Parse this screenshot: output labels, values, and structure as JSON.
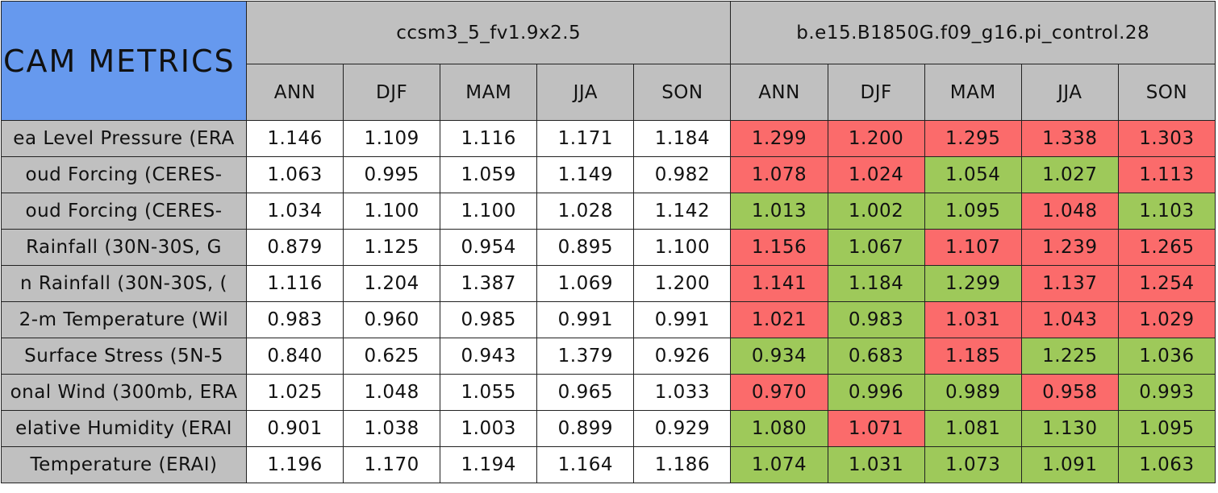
{
  "table": {
    "corner": "CAM METRICS",
    "groups": [
      "ccsm3_5_fv1.9x2.5",
      "b.e15.B1850G.f09_g16.pi_control.28"
    ],
    "seasons": [
      "ANN",
      "DJF",
      "MAM",
      "JJA",
      "SON",
      "ANN",
      "DJF",
      "MAM",
      "JJA",
      "SON"
    ],
    "rows": [
      {
        "label": "ea Level Pressure (ERA",
        "values": [
          "1.146",
          "1.109",
          "1.116",
          "1.171",
          "1.184",
          "1.299",
          "1.200",
          "1.295",
          "1.338",
          "1.303"
        ],
        "colors": [
          "#fb6b6b",
          "#fb6b6b",
          "#fb6b6b",
          "#fb6b6b",
          "#fb6b6b"
        ]
      },
      {
        "label": "oud Forcing (CERES-",
        "values": [
          "1.063",
          "0.995",
          "1.059",
          "1.149",
          "0.982",
          "1.078",
          "1.024",
          "1.054",
          "1.027",
          "1.113"
        ],
        "colors": [
          "#fb6b6b",
          "#fb6b6b",
          "#9ec95a",
          "#9ec95a",
          "#fb6b6b"
        ]
      },
      {
        "label": "oud Forcing (CERES-",
        "values": [
          "1.034",
          "1.100",
          "1.100",
          "1.028",
          "1.142",
          "1.013",
          "1.002",
          "1.095",
          "1.048",
          "1.103"
        ],
        "colors": [
          "#9ec95a",
          "#9ec95a",
          "#9ec95a",
          "#fb6b6b",
          "#9ec95a"
        ]
      },
      {
        "label": "Rainfall (30N-30S, G",
        "values": [
          "0.879",
          "1.125",
          "0.954",
          "0.895",
          "1.100",
          "1.156",
          "1.067",
          "1.107",
          "1.239",
          "1.265"
        ],
        "colors": [
          "#fb6b6b",
          "#9ec95a",
          "#fb6b6b",
          "#fb6b6b",
          "#fb6b6b"
        ]
      },
      {
        "label": "n Rainfall (30N-30S, (",
        "values": [
          "1.116",
          "1.204",
          "1.387",
          "1.069",
          "1.200",
          "1.141",
          "1.184",
          "1.299",
          "1.137",
          "1.254"
        ],
        "colors": [
          "#fb6b6b",
          "#9ec95a",
          "#9ec95a",
          "#fb6b6b",
          "#fb6b6b"
        ]
      },
      {
        "label": "2-m Temperature (Wil",
        "values": [
          "0.983",
          "0.960",
          "0.985",
          "0.991",
          "0.991",
          "1.021",
          "0.983",
          "1.031",
          "1.043",
          "1.029"
        ],
        "colors": [
          "#fb6b6b",
          "#9ec95a",
          "#fb6b6b",
          "#fb6b6b",
          "#fb6b6b"
        ]
      },
      {
        "label": "Surface Stress (5N-5",
        "values": [
          "0.840",
          "0.625",
          "0.943",
          "1.379",
          "0.926",
          "0.934",
          "0.683",
          "1.185",
          "1.225",
          "1.036"
        ],
        "colors": [
          "#9ec95a",
          "#9ec95a",
          "#fb6b6b",
          "#9ec95a",
          "#9ec95a"
        ]
      },
      {
        "label": "onal Wind (300mb, ERA",
        "values": [
          "1.025",
          "1.048",
          "1.055",
          "0.965",
          "1.033",
          "0.970",
          "0.996",
          "0.989",
          "0.958",
          "0.993"
        ],
        "colors": [
          "#fb6b6b",
          "#9ec95a",
          "#9ec95a",
          "#fb6b6b",
          "#9ec95a"
        ]
      },
      {
        "label": "elative Humidity (ERAI",
        "values": [
          "0.901",
          "1.038",
          "1.003",
          "0.899",
          "0.929",
          "1.080",
          "1.071",
          "1.081",
          "1.130",
          "1.095"
        ],
        "colors": [
          "#9ec95a",
          "#fb6b6b",
          "#9ec95a",
          "#9ec95a",
          "#9ec95a"
        ]
      },
      {
        "label": "Temperature (ERAI)",
        "values": [
          "1.196",
          "1.170",
          "1.194",
          "1.164",
          "1.186",
          "1.074",
          "1.031",
          "1.073",
          "1.091",
          "1.063"
        ],
        "colors": [
          "#9ec95a",
          "#9ec95a",
          "#9ec95a",
          "#9ec95a",
          "#9ec95a"
        ]
      }
    ]
  }
}
